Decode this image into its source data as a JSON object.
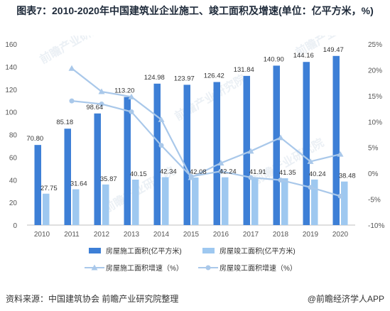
{
  "title": "图表7：2010-2020年中国建筑业企业施工、竣工面积及增速(单位：亿平方米，%)",
  "footer": {
    "source": "资料来源：中国建筑协会 前瞻产业研究院整理",
    "brand": "@前瞻经济学人APP"
  },
  "watermark": "前瞻产业研究院",
  "colors": {
    "construction_bar": "#3d7fd6",
    "completion_bar": "#9ec8f0",
    "construction_line": "#a9c8ea",
    "completion_line": "#a9c8ea",
    "axis_text": "#555555",
    "grid": "#e6e6e6"
  },
  "chart_data": {
    "type": "bar",
    "categories": [
      "2010",
      "2011",
      "2012",
      "2013",
      "2014",
      "2015",
      "2016",
      "2017",
      "2018",
      "2019",
      "2020"
    ],
    "ylim_left": [
      0,
      160
    ],
    "yticks_left": [
      0,
      20,
      40,
      60,
      80,
      100,
      120,
      140,
      160
    ],
    "ylim_right": [
      -10,
      25
    ],
    "yticks_right": [
      "-10%",
      "-5%",
      "0%",
      "5%",
      "10%",
      "15%",
      "20%",
      "25%"
    ],
    "series": [
      {
        "name": "房屋施工面积(亿平方米)",
        "kind": "bar",
        "axis": "left",
        "values": [
          70.8,
          85.18,
          98.64,
          113.2,
          124.98,
          123.97,
          126.42,
          131.84,
          140.9,
          144.16,
          149.47
        ],
        "labels": [
          "70.80",
          "85.18",
          "98.64",
          "113.20",
          "124.98",
          "123.97",
          "126.42",
          "131.84",
          "140.90",
          "144.16",
          "149.47"
        ]
      },
      {
        "name": "房屋竣工面积(亿平方米)",
        "kind": "bar",
        "axis": "left",
        "values": [
          27.75,
          31.64,
          35.87,
          40.15,
          42.34,
          42.08,
          42.24,
          41.91,
          41.35,
          40.24,
          38.48
        ],
        "labels": [
          "27.75",
          "31.64",
          "35.87",
          "40.15",
          "42.34",
          "42.08",
          "42.24",
          "41.91",
          "41.35",
          "40.24",
          "38.48"
        ]
      },
      {
        "name": "房屋施工面积增速（%）",
        "kind": "line",
        "marker": "triangle",
        "axis": "right",
        "values": [
          null,
          20.3,
          15.8,
          14.8,
          10.4,
          -0.8,
          2.0,
          4.3,
          6.9,
          2.3,
          3.7
        ]
      },
      {
        "name": "房屋竣工面积增速（%）",
        "kind": "line",
        "marker": "circle",
        "axis": "right",
        "values": [
          null,
          14.0,
          13.4,
          11.9,
          5.4,
          -0.6,
          0.4,
          -0.8,
          -1.3,
          -2.7,
          -4.4
        ]
      }
    ],
    "legend_position": "bottom",
    "grid": false
  }
}
